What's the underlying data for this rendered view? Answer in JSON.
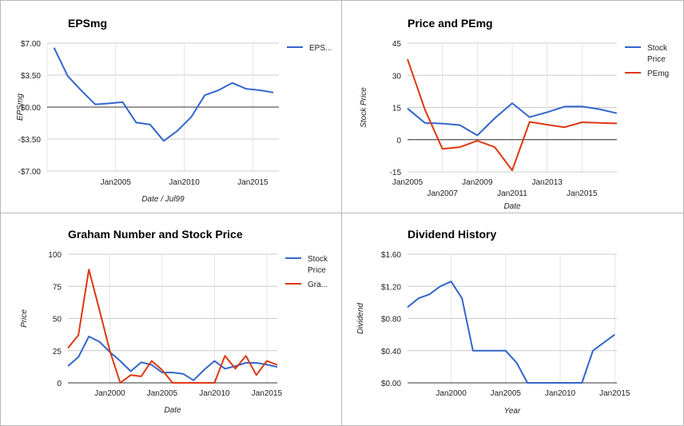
{
  "chart_data": [
    {
      "type": "line",
      "title": "EPSmg",
      "xlabel": "Date / Jul99",
      "ylabel": "EPSmg",
      "x": [
        2000.5,
        2001.5,
        2002.5,
        2003.5,
        2004.5,
        2005.5,
        2006.5,
        2007.5,
        2008.5,
        2009.5,
        2010.5,
        2011.5,
        2012.5,
        2013.5,
        2014.5,
        2015.5,
        2016.5
      ],
      "series": [
        {
          "name": "EPS...",
          "color": "#3366cc",
          "values": [
            6.5,
            3.4,
            1.8,
            0.3,
            0.4,
            0.55,
            -1.7,
            -1.9,
            -3.7,
            -2.6,
            -1.1,
            1.3,
            1.85,
            2.65,
            2.0,
            1.85,
            1.6
          ]
        }
      ],
      "ylim": [
        -7,
        7
      ],
      "yticks": [
        "$7.00",
        "$3.50",
        "$0.00",
        "-$3.50",
        "-$7.00"
      ],
      "xticks": [
        "Jan2005",
        "Jan2010",
        "Jan2015"
      ],
      "grid": true,
      "legend": "right"
    },
    {
      "type": "line",
      "title": "Price and PEmg",
      "xlabel": "Date",
      "ylabel": "Stock Price",
      "x": [
        2005,
        2006,
        2007,
        2008,
        2009,
        2010,
        2011,
        2012,
        2013,
        2014,
        2015,
        2016,
        2017
      ],
      "series": [
        {
          "name": "Stock Price",
          "color": "#3366cc",
          "values": [
            14.5,
            7.8,
            7.5,
            6.8,
            2.0,
            10.0,
            17.0,
            10.5,
            12.8,
            15.4,
            15.5,
            14.2,
            12.3
          ]
        },
        {
          "name": "PEmg",
          "color": "#dc3912",
          "values": [
            37.5,
            14.0,
            -4.3,
            -3.5,
            -0.5,
            -3.5,
            -14.3,
            8.3,
            7.0,
            5.8,
            8.1,
            7.8,
            7.6
          ]
        }
      ],
      "ylim": [
        -15,
        45
      ],
      "yticks": [
        "45",
        "30",
        "15",
        "0",
        "-15"
      ],
      "xticks": [
        "Jan2005",
        "Jan2007",
        "Jan2009",
        "Jan2011",
        "Jan2013",
        "Jan2015"
      ],
      "grid": true,
      "legend": "right"
    },
    {
      "type": "line",
      "title": "Graham Number and Stock Price",
      "xlabel": "Date",
      "ylabel": "Price",
      "x": [
        1996,
        1997,
        1998,
        1999,
        2000,
        2001,
        2002,
        2003,
        2004,
        2005,
        2006,
        2007,
        2008,
        2009,
        2010,
        2011,
        2012,
        2013,
        2014,
        2015,
        2016
      ],
      "series": [
        {
          "name": "Stock Price",
          "color": "#3366cc",
          "values": [
            13,
            20,
            36,
            32,
            24,
            17,
            9,
            16,
            14,
            8,
            8,
            7,
            2,
            10,
            17,
            11,
            13,
            15.5,
            15.5,
            14.2,
            12.3
          ]
        },
        {
          "name": "Gra...",
          "color": "#dc3912",
          "values": [
            27,
            37,
            88,
            57,
            25,
            0,
            6,
            5,
            17,
            10,
            0,
            0,
            0,
            0,
            0,
            21,
            11,
            21,
            6,
            17,
            14
          ]
        }
      ],
      "ylim": [
        0,
        100
      ],
      "yticks": [
        "100",
        "75",
        "50",
        "25",
        "0"
      ],
      "xticks": [
        "Jan2000",
        "Jan2005",
        "Jan2010",
        "Jan2015"
      ],
      "grid": true,
      "legend": "right"
    },
    {
      "type": "line",
      "title": "Dividend History",
      "xlabel": "Year",
      "ylabel": "Dividend",
      "x": [
        1996,
        1997,
        1998,
        1999,
        2000,
        2001,
        2002,
        2003,
        2004,
        2005,
        2006,
        2007,
        2008,
        2009,
        2010,
        2011,
        2012,
        2013,
        2014,
        2015
      ],
      "series": [
        {
          "name": "Dividend",
          "color": "#3366cc",
          "values": [
            0.94,
            1.05,
            1.1,
            1.2,
            1.26,
            1.05,
            0.4,
            0.4,
            0.4,
            0.4,
            0.25,
            0.0,
            0.0,
            0.0,
            0.0,
            0.0,
            0.0,
            0.4,
            0.5,
            0.6
          ]
        }
      ],
      "ylim": [
        0,
        1.6
      ],
      "yticks": [
        "$1.60",
        "$1.20",
        "$0.80",
        "$0.40",
        "$0.00"
      ],
      "xticks": [
        "Jan2000",
        "Jan2005",
        "Jan2010",
        "Jan2015"
      ],
      "grid": true,
      "legend": "none"
    }
  ]
}
